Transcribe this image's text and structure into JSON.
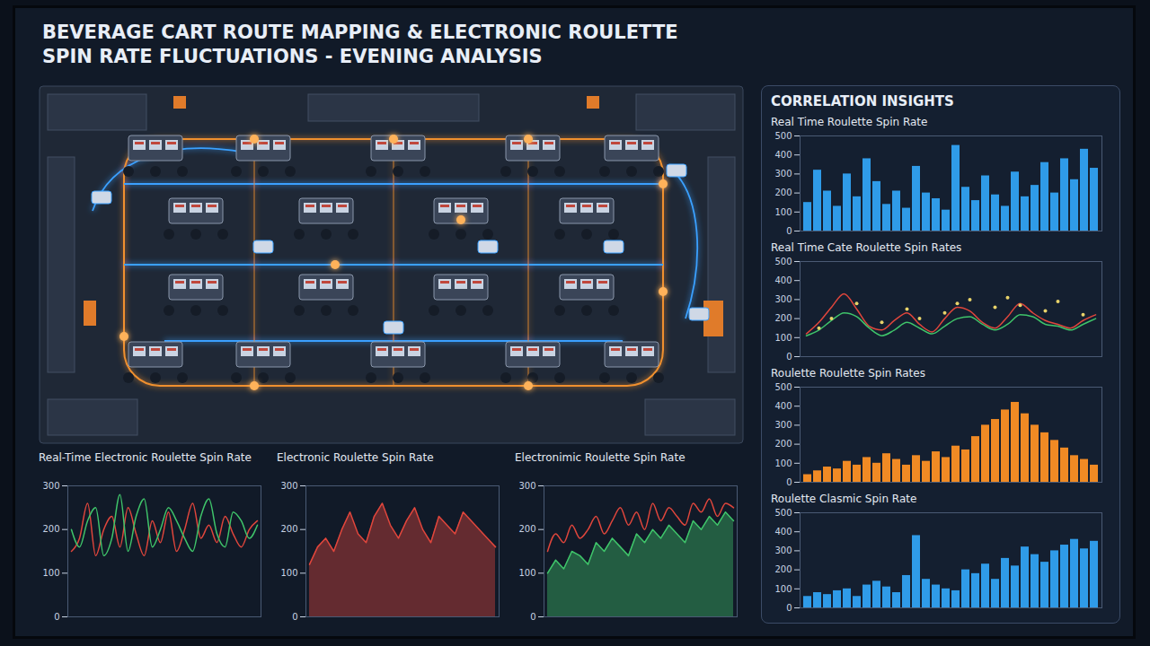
{
  "title": "BEVERAGE CART ROUTE MAPPING & ELECTRONIC ROULETTE SPIN RATE FLUCTUATIONS - EVENING ANALYSIS",
  "side_panel_title": "CORRELATION INSIGHTS",
  "chart_data": [
    {
      "type": "bar",
      "title": "Real Time Roulette Spin Rate",
      "categories": [
        null,
        null,
        null,
        null,
        null,
        null,
        null,
        null,
        null,
        null,
        null,
        null,
        null,
        null,
        null,
        null,
        null,
        null,
        null,
        null,
        null,
        null,
        null,
        null,
        null,
        null,
        null,
        null,
        null,
        null
      ],
      "values": [
        150,
        320,
        210,
        130,
        300,
        180,
        380,
        260,
        140,
        210,
        120,
        340,
        200,
        170,
        110,
        450,
        230,
        160,
        290,
        190,
        130,
        310,
        180,
        240,
        360,
        200,
        380,
        270,
        430,
        330
      ],
      "color": "#2f9be8",
      "ylim": [
        0,
        500
      ],
      "yticks": [
        0,
        100,
        200,
        300,
        400,
        500
      ],
      "grid": false,
      "tick_labels": "y"
    },
    {
      "type": "line",
      "title": "Real Time Cate Roulette Spin Rates",
      "categories": [
        null,
        null,
        null,
        null,
        null,
        null,
        null,
        null,
        null,
        null,
        null,
        null,
        null,
        null,
        null,
        null,
        null,
        null,
        null,
        null,
        null,
        null,
        null,
        null
      ],
      "series": [
        {
          "color": "#e0463c",
          "values": [
            120,
            180,
            260,
            330,
            250,
            160,
            140,
            190,
            230,
            170,
            130,
            200,
            260,
            240,
            180,
            150,
            210,
            280,
            230,
            190,
            170,
            150,
            190,
            220
          ]
        },
        {
          "color": "#3fc46a",
          "values": [
            110,
            140,
            190,
            230,
            210,
            150,
            110,
            140,
            180,
            150,
            120,
            160,
            200,
            210,
            170,
            140,
            170,
            220,
            210,
            170,
            160,
            140,
            170,
            200
          ]
        },
        {
          "type": "scatter",
          "marker": "dot",
          "color": "#e8d36a",
          "values": [
            null,
            150,
            200,
            null,
            280,
            null,
            180,
            null,
            250,
            200,
            null,
            230,
            280,
            300,
            null,
            260,
            310,
            270,
            null,
            240,
            290,
            null,
            220,
            null
          ]
        }
      ],
      "ylim": [
        0,
        500
      ],
      "yticks": [
        0,
        100,
        200,
        300,
        400,
        500
      ],
      "grid": false,
      "tick_labels": "y"
    },
    {
      "type": "bar",
      "title": "Roulette Roulette Spin Rates",
      "categories": [
        null,
        null,
        null,
        null,
        null,
        null,
        null,
        null,
        null,
        null,
        null,
        null,
        null,
        null,
        null,
        null,
        null,
        null,
        null,
        null,
        null,
        null,
        null,
        null,
        null,
        null,
        null,
        null,
        null,
        null
      ],
      "values": [
        40,
        60,
        80,
        70,
        110,
        90,
        130,
        100,
        150,
        120,
        90,
        140,
        110,
        160,
        130,
        190,
        170,
        240,
        300,
        330,
        380,
        420,
        360,
        300,
        260,
        220,
        180,
        140,
        120,
        90
      ],
      "color": "#f08a24",
      "ylim": [
        0,
        500
      ],
      "yticks": [
        0,
        100,
        200,
        300,
        400,
        500
      ],
      "grid": false,
      "tick_labels": "y"
    },
    {
      "type": "bar",
      "title": "Roulette Clasmic Spin Rate",
      "categories": [
        null,
        null,
        null,
        null,
        null,
        null,
        null,
        null,
        null,
        null,
        null,
        null,
        null,
        null,
        null,
        null,
        null,
        null,
        null,
        null,
        null,
        null,
        null,
        null,
        null,
        null,
        null,
        null,
        null,
        null
      ],
      "values": [
        60,
        80,
        70,
        90,
        100,
        60,
        120,
        140,
        110,
        80,
        170,
        380,
        150,
        120,
        100,
        90,
        200,
        180,
        230,
        150,
        260,
        220,
        320,
        280,
        240,
        300,
        330,
        360,
        310,
        350
      ],
      "color": "#2f9be8",
      "ylim": [
        0,
        500
      ],
      "yticks": [
        0,
        100,
        200,
        300,
        400,
        500
      ],
      "grid": false,
      "tick_labels": "y"
    },
    {
      "type": "line",
      "title": "Real-Time Electronic Roulette Spin Rate",
      "categories": [
        null,
        null,
        null,
        null,
        null,
        null,
        null,
        null,
        null,
        null,
        null,
        null,
        null,
        null,
        null,
        null,
        null,
        null,
        null,
        null,
        null,
        null,
        null,
        null
      ],
      "series": [
        {
          "color": "#e0463c",
          "values": [
            150,
            180,
            260,
            140,
            200,
            230,
            160,
            250,
            190,
            140,
            220,
            170,
            240,
            150,
            200,
            260,
            180,
            210,
            170,
            230,
            190,
            160,
            200,
            220
          ]
        },
        {
          "color": "#3fc46a",
          "values": [
            200,
            160,
            220,
            250,
            140,
            180,
            280,
            150,
            230,
            270,
            160,
            200,
            250,
            220,
            180,
            150,
            230,
            270,
            190,
            160,
            240,
            220,
            180,
            210
          ]
        }
      ],
      "ylim": [
        0,
        300
      ],
      "yticks": [
        0,
        100,
        200,
        300
      ],
      "grid": false,
      "tick_labels": "y"
    },
    {
      "type": "area",
      "title": "Electronic Roulette Spin Rate",
      "categories": [
        null,
        null,
        null,
        null,
        null,
        null,
        null,
        null,
        null,
        null,
        null,
        null,
        null,
        null,
        null,
        null,
        null,
        null,
        null,
        null,
        null,
        null,
        null,
        null
      ],
      "series": [
        {
          "color": "#e0463c",
          "values": [
            120,
            160,
            180,
            150,
            200,
            240,
            190,
            170,
            230,
            260,
            210,
            180,
            220,
            250,
            200,
            170,
            230,
            210,
            190,
            240,
            220,
            200,
            180,
            160
          ]
        }
      ],
      "ylim": [
        0,
        300
      ],
      "yticks": [
        0,
        100,
        200,
        300
      ],
      "grid": false,
      "tick_labels": "y"
    },
    {
      "type": "area",
      "title": "Electronimic Roulette Spin Rate",
      "categories": [
        null,
        null,
        null,
        null,
        null,
        null,
        null,
        null,
        null,
        null,
        null,
        null,
        null,
        null,
        null,
        null,
        null,
        null,
        null,
        null,
        null,
        null,
        null,
        null
      ],
      "series": [
        {
          "color": "#3fc46a",
          "values": [
            100,
            130,
            110,
            150,
            140,
            120,
            170,
            150,
            180,
            160,
            140,
            190,
            170,
            200,
            180,
            210,
            190,
            170,
            220,
            200,
            230,
            210,
            240,
            220
          ]
        },
        {
          "type": "line",
          "color": "#e0463c",
          "values": [
            150,
            190,
            170,
            210,
            180,
            200,
            230,
            190,
            220,
            250,
            210,
            240,
            200,
            260,
            220,
            250,
            230,
            210,
            260,
            240,
            270,
            230,
            260,
            250
          ]
        }
      ],
      "ylim": [
        0,
        300
      ],
      "yticks": [
        0,
        100,
        200,
        300
      ],
      "grid": false,
      "tick_labels": "y"
    }
  ]
}
